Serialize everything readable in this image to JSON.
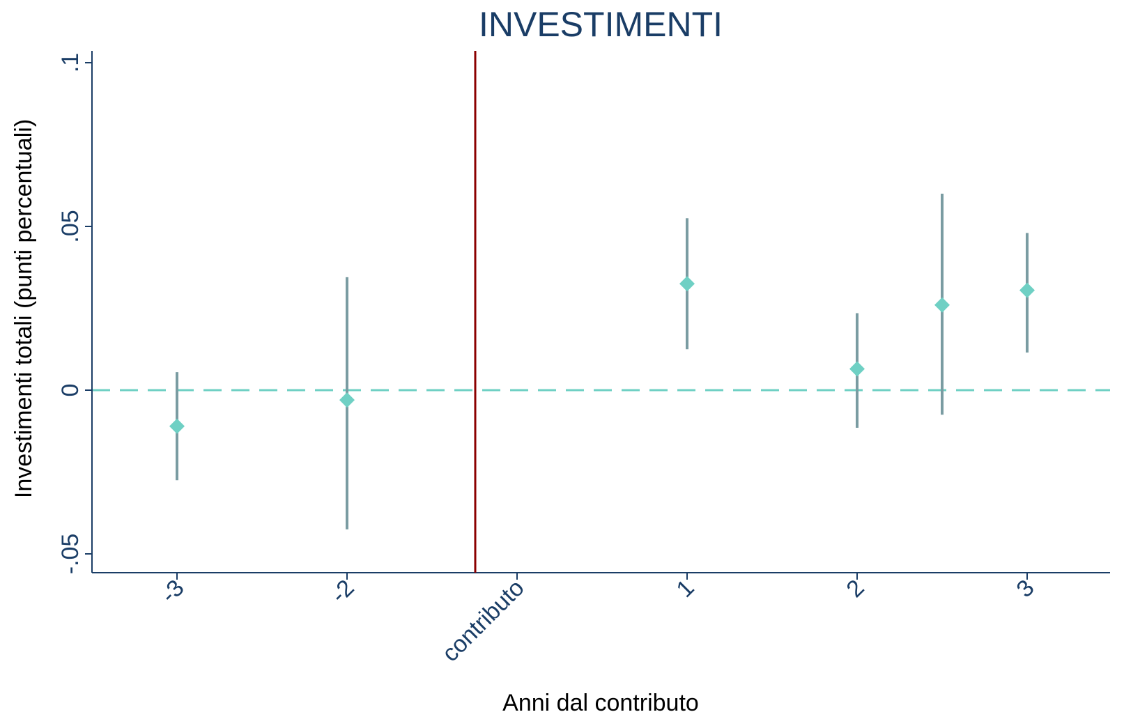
{
  "chart_data": {
    "type": "scatter",
    "title": "INVESTIMENTI",
    "xlabel": "Anni dal contributo",
    "ylabel": "Investimenti totali (punti percentuali)",
    "ylim": [
      -0.05,
      0.1
    ],
    "yticks": [
      {
        "value": -0.05,
        "label": "-.05"
      },
      {
        "value": 0,
        "label": "0"
      },
      {
        "value": 0.05,
        "label": ".05"
      },
      {
        "value": 0.1,
        "label": ".1"
      }
    ],
    "categories": [
      "-3",
      "-2",
      "contributo",
      "1",
      "2",
      "3"
    ],
    "points": [
      {
        "category": "-3",
        "estimate": -0.011,
        "ci_low": -0.0275,
        "ci_high": 0.0055
      },
      {
        "category": "-2",
        "estimate": -0.003,
        "ci_low": -0.0425,
        "ci_high": 0.0345
      },
      {
        "category": "1",
        "estimate": 0.0325,
        "ci_low": 0.0125,
        "ci_high": 0.0525
      },
      {
        "category": "2",
        "estimate": 0.0065,
        "ci_low": -0.0115,
        "ci_high": 0.0235
      },
      {
        "category": "3",
        "estimate": 0.0305,
        "ci_low": 0.0115,
        "ci_high": 0.048
      }
    ],
    "extra_point": {
      "position": 5.5,
      "estimate": 0.026,
      "ci_low": -0.0075,
      "ci_high": 0.06
    },
    "reference_line_y": 0,
    "event_line_category": "contributo",
    "grid": false,
    "colors": {
      "title": "#1a3d66",
      "axis": "#1a3d66",
      "point": "#6fd0c4",
      "ci": "#7a9ca2",
      "reference_line": "#6fd0c4",
      "event_line": "#8b0000"
    }
  }
}
